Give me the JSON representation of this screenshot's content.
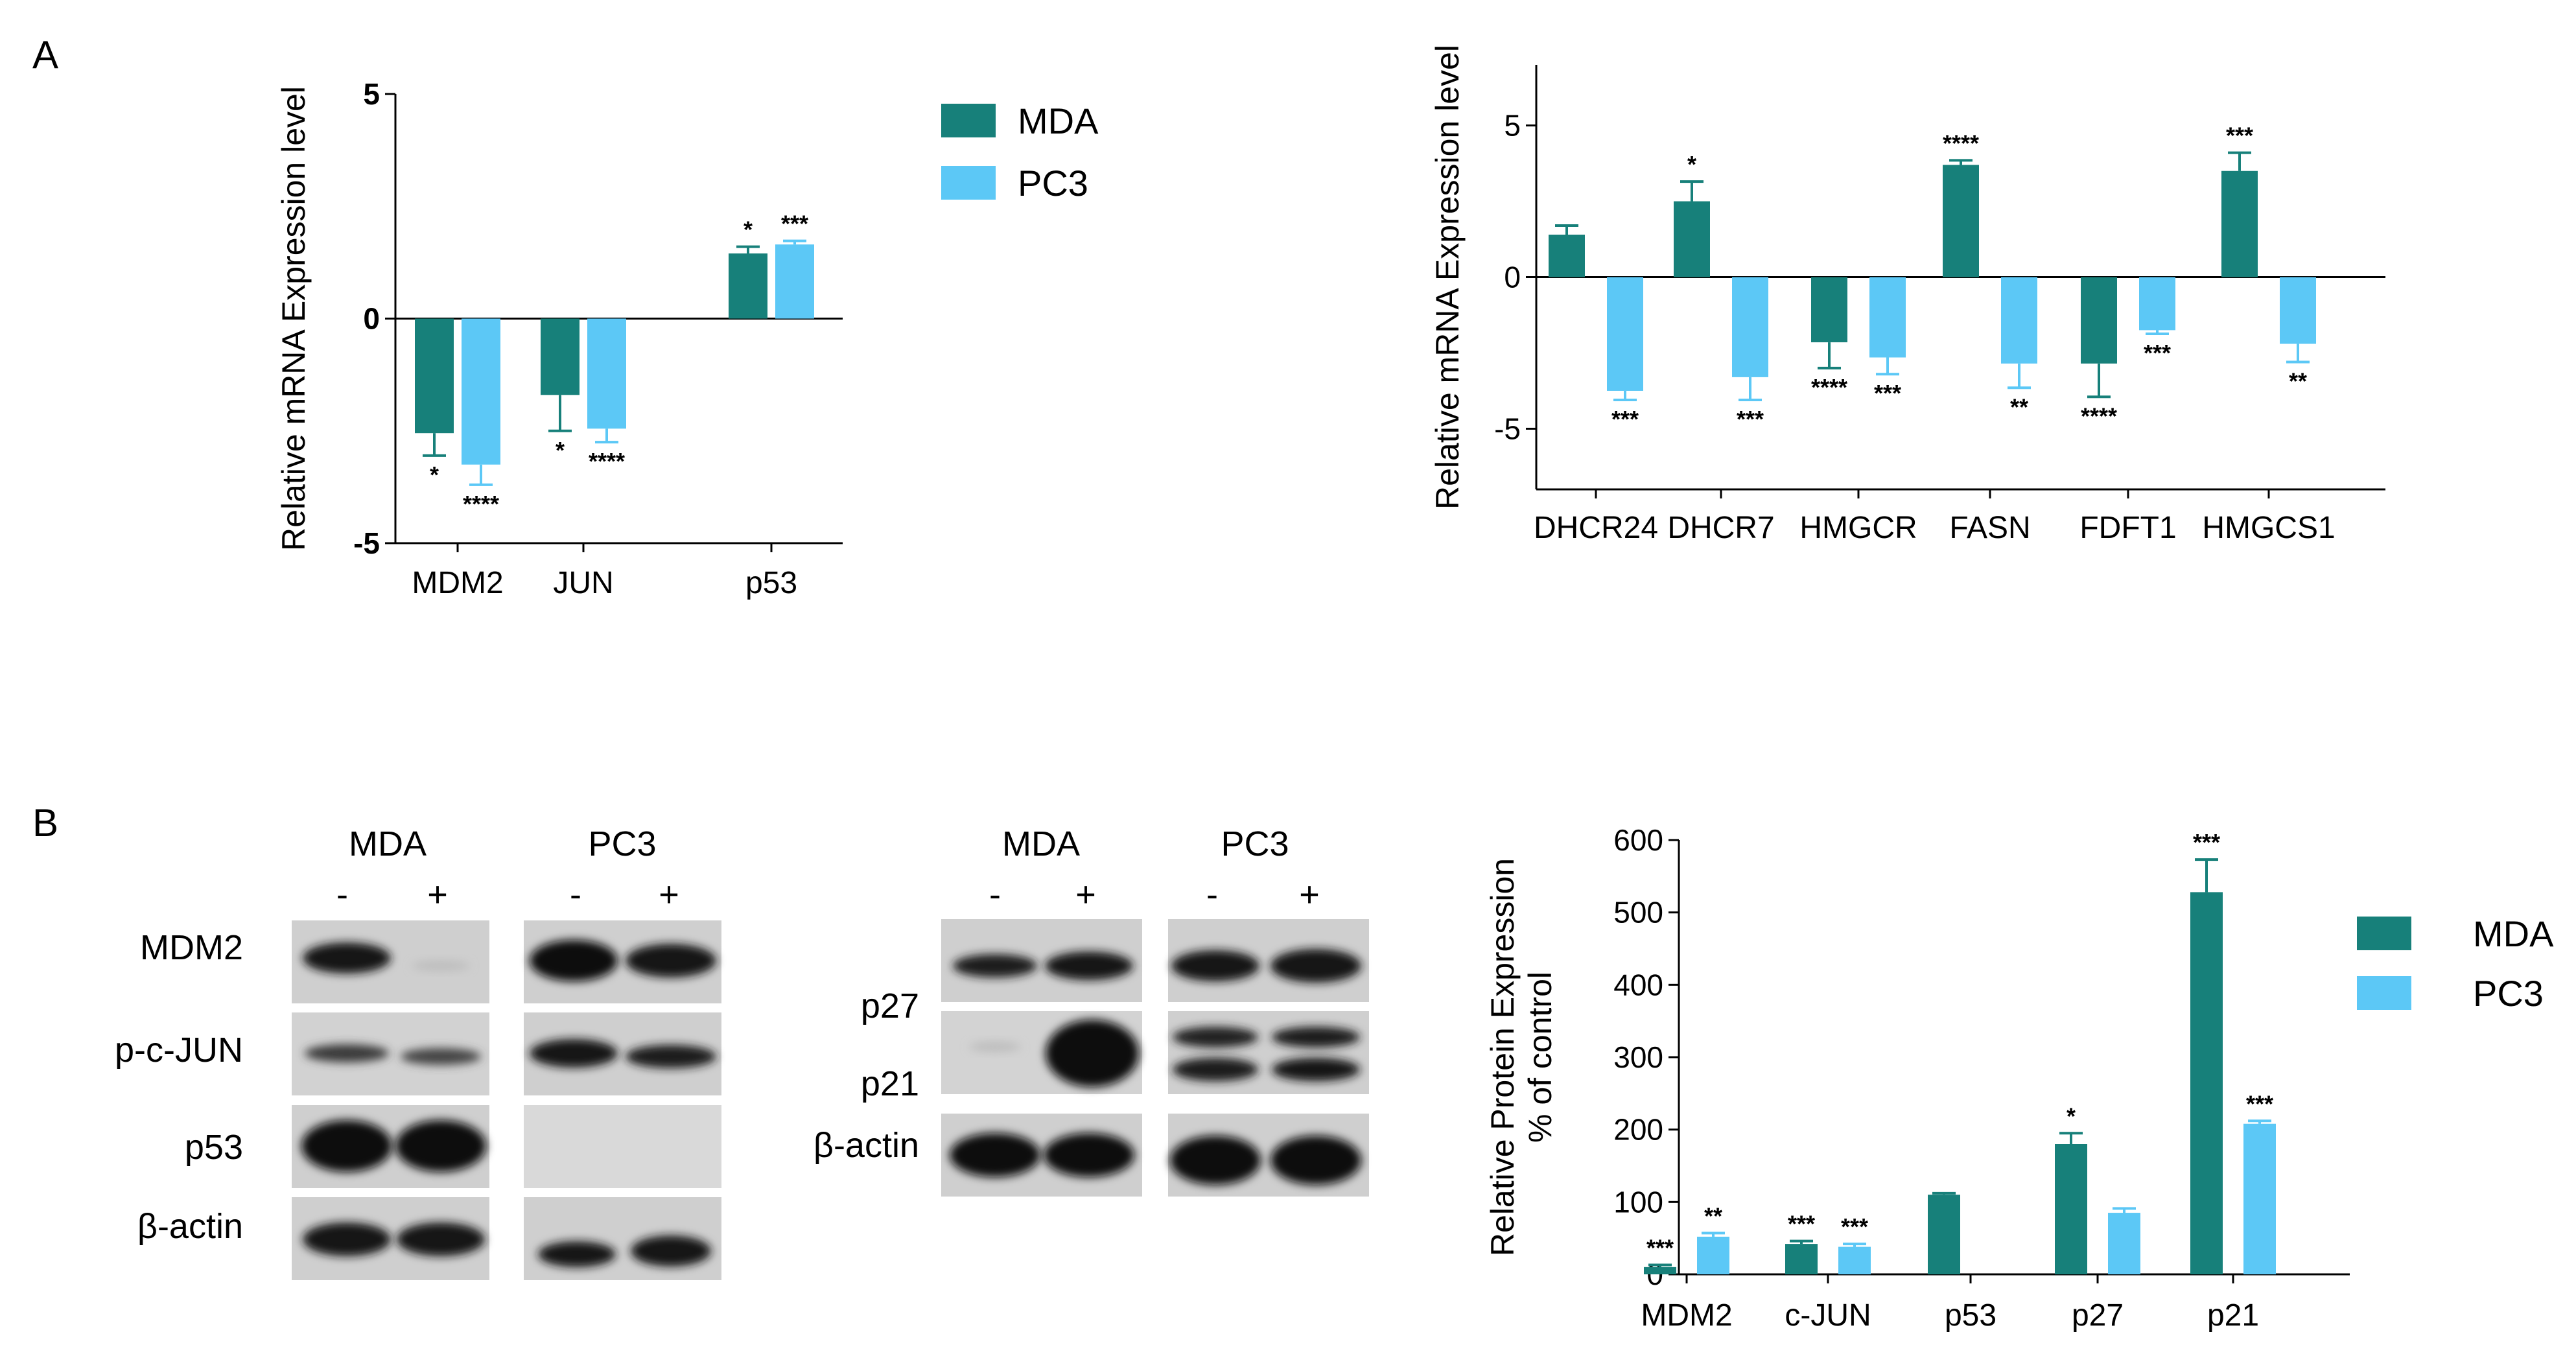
{
  "colors": {
    "MDA": "#17807a",
    "PC3": "#5cc8f6",
    "axis": "#000000"
  },
  "panels": {
    "a": "A",
    "b": "B"
  },
  "legend_top": [
    {
      "label": "MDA",
      "color": "#17807a"
    },
    {
      "label": "PC3",
      "color": "#5cc8f6"
    }
  ],
  "legend_bottom": [
    {
      "label": "MDA",
      "color": "#17807a"
    },
    {
      "label": "PC3",
      "color": "#5cc8f6"
    }
  ],
  "chart_data": [
    {
      "type": "bar",
      "ylabel": "Relative mRNA Expression level",
      "ylim": [
        -5,
        5
      ],
      "yticks": [
        -5,
        0,
        5
      ],
      "categories": [
        "MDM2",
        "JUN",
        "p53"
      ],
      "series": [
        {
          "name": "MDA",
          "values": [
            -2.55,
            -1.7,
            1.45
          ],
          "errors": [
            0.5,
            0.8,
            0.15
          ],
          "stars": [
            "*",
            "*",
            "*"
          ]
        },
        {
          "name": "PC3",
          "values": [
            -3.25,
            -2.45,
            1.65
          ],
          "errors": [
            0.45,
            0.3,
            0.08
          ],
          "stars": [
            "****",
            "****",
            "***"
          ]
        }
      ]
    },
    {
      "type": "bar",
      "ylabel": "Relative mRNA Expression level",
      "ylim": [
        -7,
        7
      ],
      "yticks": [
        -5,
        0,
        5
      ],
      "categories": [
        "DHCR24",
        "DHCR7",
        "HMGCR",
        "FASN",
        "FDFT1",
        "HMGCS1"
      ],
      "series": [
        {
          "name": "MDA",
          "values": [
            1.4,
            2.5,
            -2.15,
            3.7,
            -2.85,
            3.5
          ],
          "errors": [
            0.3,
            0.65,
            0.85,
            0.15,
            1.1,
            0.6
          ],
          "stars": [
            "",
            "*",
            "****",
            "****",
            "****",
            "***"
          ]
        },
        {
          "name": "PC3",
          "values": [
            -3.75,
            -3.3,
            -2.65,
            -2.85,
            -1.75,
            -2.2
          ],
          "errors": [
            0.3,
            0.75,
            0.55,
            0.8,
            0.12,
            0.6
          ],
          "stars": [
            "***",
            "***",
            "***",
            "**",
            "***",
            "**"
          ]
        }
      ]
    },
    {
      "type": "bar",
      "ylabel": [
        "Relative Protein Expression",
        "% of control"
      ],
      "ylim": [
        0,
        600
      ],
      "yticks": [
        0,
        100,
        200,
        300,
        400,
        500,
        600
      ],
      "categories": [
        "MDM2",
        "c-JUN",
        "p53",
        "p27",
        "p21"
      ],
      "series": [
        {
          "name": "MDA",
          "values": [
            10,
            42,
            110,
            180,
            528
          ],
          "errors": [
            3,
            4,
            2,
            15,
            45
          ],
          "stars": [
            "***",
            "***",
            "",
            "*",
            "***"
          ]
        },
        {
          "name": "PC3",
          "values": [
            52,
            38,
            0,
            85,
            208
          ],
          "errors": [
            5,
            4,
            0,
            6,
            4
          ],
          "stars": [
            "**",
            "***",
            "",
            "",
            "***"
          ]
        }
      ]
    }
  ],
  "blots": {
    "left": {
      "groups": [
        "MDA",
        "PC3"
      ],
      "signs": [
        "-",
        "+",
        "-",
        "+"
      ],
      "rows": [
        "MDM2",
        "p-c-JUN",
        "p53",
        "β-actin"
      ]
    },
    "right": {
      "groups": [
        "MDA",
        "PC3"
      ],
      "signs": [
        "-",
        "+",
        "-",
        "+"
      ],
      "rows": [
        "p27",
        "p21",
        "β-actin"
      ]
    }
  }
}
